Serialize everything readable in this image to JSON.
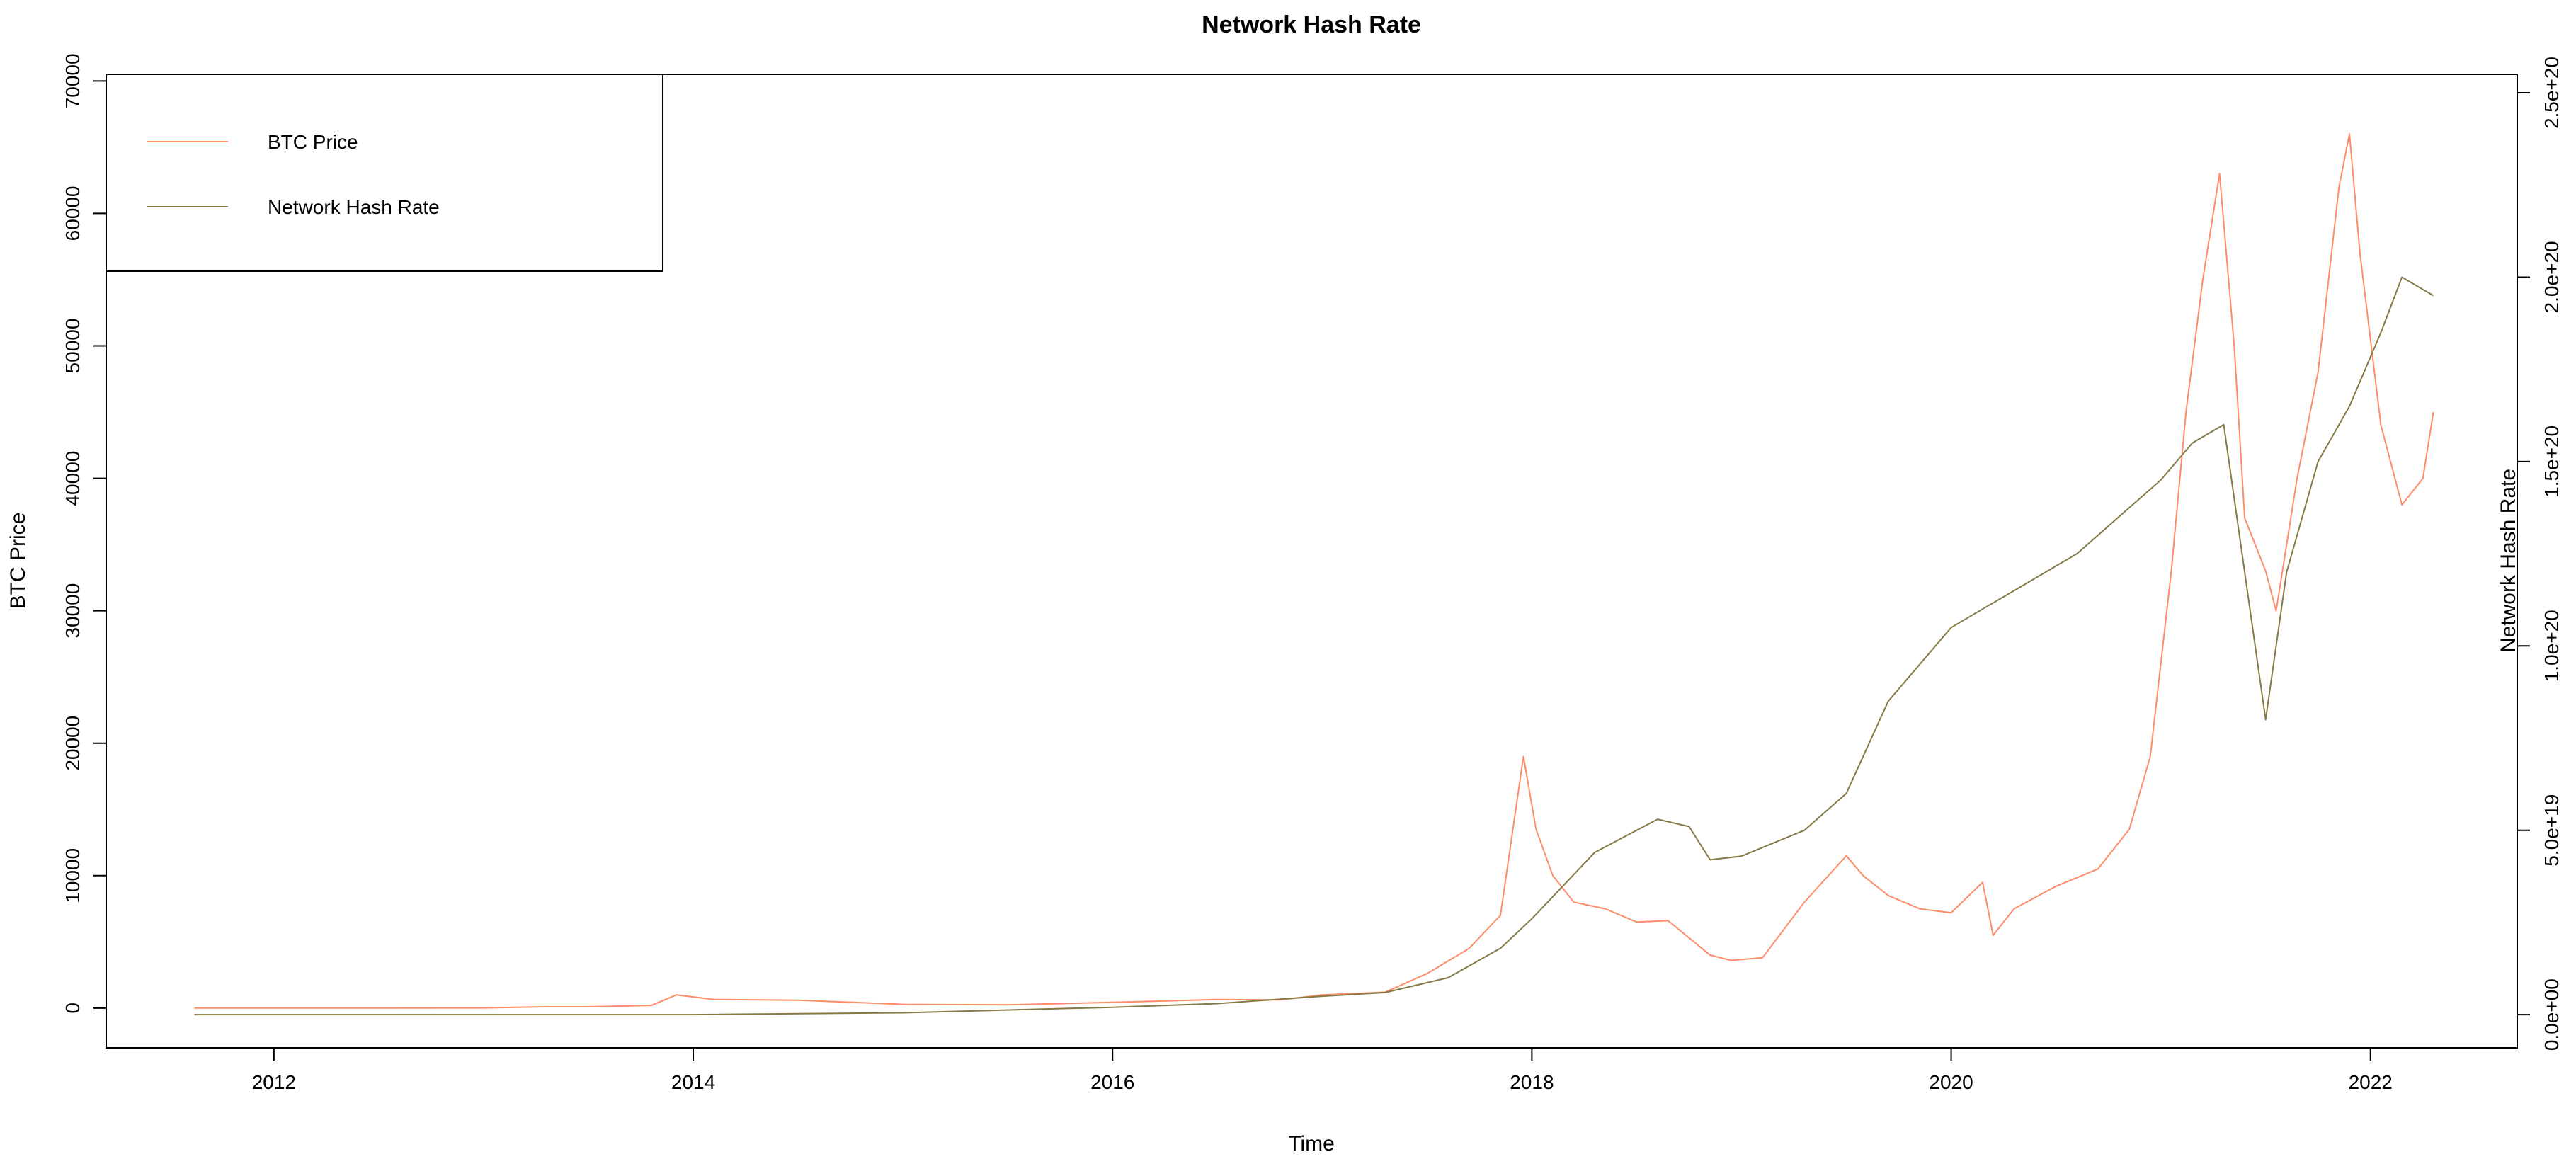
{
  "chart_data": {
    "type": "line",
    "title": "Network Hash Rate",
    "xlabel": "Time",
    "ylabel_left": "BTC Price",
    "ylabel_right": "Network Hash Rate",
    "x_ticks": [
      "2012",
      "2014",
      "2016",
      "2018",
      "2020",
      "2022"
    ],
    "x_tick_values": [
      2012,
      2014,
      2016,
      2018,
      2020,
      2022
    ],
    "xlim": [
      2011.2,
      2022.7
    ],
    "ylim_left": [
      -3000,
      70500
    ],
    "y_left_ticks": [
      "0",
      "10000",
      "20000",
      "30000",
      "40000",
      "50000",
      "60000",
      "70000"
    ],
    "y_left_tick_values": [
      0,
      10000,
      20000,
      30000,
      40000,
      50000,
      60000,
      70000
    ],
    "ylim_right": [
      -9e+18,
      2.55e+20
    ],
    "y_right_ticks": [
      "0.0e+00",
      "5.0e+19",
      "1.0e+20",
      "1.5e+20",
      "2.0e+20",
      "2.5e+20"
    ],
    "y_right_tick_values": [
      0,
      5e+19,
      1e+20,
      1.5e+20,
      2e+20,
      2.5e+20
    ],
    "legend": {
      "placement": "top-left",
      "entries": [
        "BTC Price",
        "Network Hash Rate"
      ]
    },
    "grid": false,
    "series": [
      {
        "name": "BTC Price",
        "axis": "left",
        "color": "#FF8C69",
        "x": [
          2011.62,
          2012.0,
          2012.5,
          2013.0,
          2013.3,
          2013.5,
          2013.8,
          2013.92,
          2014.1,
          2014.5,
          2015.0,
          2015.5,
          2016.0,
          2016.5,
          2016.8,
          2017.0,
          2017.3,
          2017.5,
          2017.7,
          2017.85,
          2017.96,
          2018.02,
          2018.1,
          2018.2,
          2018.35,
          2018.5,
          2018.65,
          2018.85,
          2018.95,
          2019.1,
          2019.3,
          2019.5,
          2019.58,
          2019.7,
          2019.85,
          2020.0,
          2020.15,
          2020.2,
          2020.3,
          2020.5,
          2020.7,
          2020.85,
          2020.95,
          2021.05,
          2021.12,
          2021.2,
          2021.28,
          2021.35,
          2021.4,
          2021.5,
          2021.55,
          2021.65,
          2021.75,
          2021.85,
          2021.9,
          2021.95,
          2022.05,
          2022.15,
          2022.25,
          2022.3
        ],
        "y": [
          10,
          5,
          7,
          13,
          100,
          100,
          200,
          1000,
          650,
          600,
          280,
          250,
          430,
          650,
          620,
          1000,
          1200,
          2600,
          4500,
          7000,
          19000,
          13500,
          10000,
          8000,
          7500,
          6500,
          6600,
          4000,
          3600,
          3800,
          8000,
          11500,
          10000,
          8500,
          7500,
          7200,
          9500,
          5500,
          7500,
          9200,
          10500,
          13500,
          19000,
          33000,
          45000,
          55000,
          63000,
          50000,
          37000,
          33000,
          30000,
          40000,
          48000,
          62000,
          66000,
          57000,
          44000,
          38000,
          40000,
          45000
        ]
      },
      {
        "name": "Network Hash Rate",
        "axis": "right",
        "color": "#857A45",
        "x": [
          2011.62,
          2014.0,
          2015.0,
          2016.0,
          2016.5,
          2017.0,
          2017.3,
          2017.6,
          2017.85,
          2018.0,
          2018.3,
          2018.6,
          2018.75,
          2018.85,
          2019.0,
          2019.3,
          2019.5,
          2019.7,
          2019.85,
          2020.0,
          2020.15,
          2020.3,
          2020.45,
          2020.6,
          2020.8,
          2021.0,
          2021.15,
          2021.3,
          2021.4,
          2021.5,
          2021.6,
          2021.75,
          2021.9,
          2022.05,
          2022.15,
          2022.3
        ],
        "y": [
          0,
          0,
          5e+17,
          2e+18,
          3e+18,
          5e+18,
          6e+18,
          1e+19,
          1.8e+19,
          2.6e+19,
          4.4e+19,
          5.3e+19,
          5.1e+19,
          4.2e+19,
          4.3e+19,
          5e+19,
          6e+19,
          8.5e+19,
          9.5e+19,
          1.05e+20,
          1.1e+20,
          1.15e+20,
          1.2e+20,
          1.25e+20,
          1.35e+20,
          1.45e+20,
          1.55e+20,
          1.6e+20,
          1.2e+20,
          8e+19,
          1.2e+20,
          1.5e+20,
          1.65e+20,
          1.85e+20,
          2e+20,
          1.95e+20
        ]
      }
    ]
  }
}
